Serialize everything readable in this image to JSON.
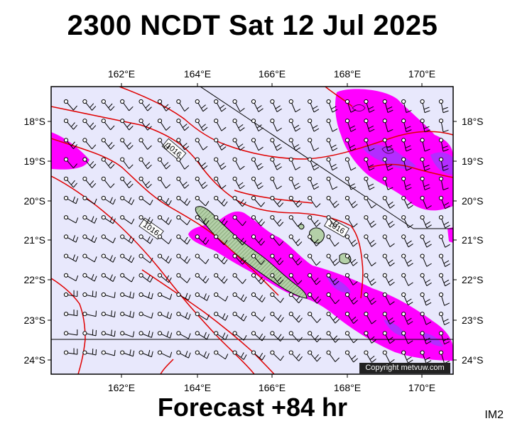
{
  "title": "2300 NCDT Sat 12 Jul 2025",
  "footer": "Forecast +84 hr",
  "image_code": "IM2",
  "copyright": "Copyright metvuw.com",
  "longitude_labels": [
    "162°E",
    "164°E",
    "166°E",
    "168°E",
    "170°E"
  ],
  "latitude_labels": [
    "18°S",
    "19°S",
    "20°S",
    "21°S",
    "22°S",
    "23°S",
    "24°S"
  ],
  "isobar_labels": [
    "1016",
    "1016",
    "1016"
  ],
  "colors": {
    "background": "#e8e8fc",
    "isobar": "#e00000",
    "rain_light": "#ff00ff",
    "rain_heavy": "#9a3cff",
    "land": "#b4d0a8",
    "barb": "#000000"
  },
  "icons": [
    "wind-barb-icon"
  ]
}
